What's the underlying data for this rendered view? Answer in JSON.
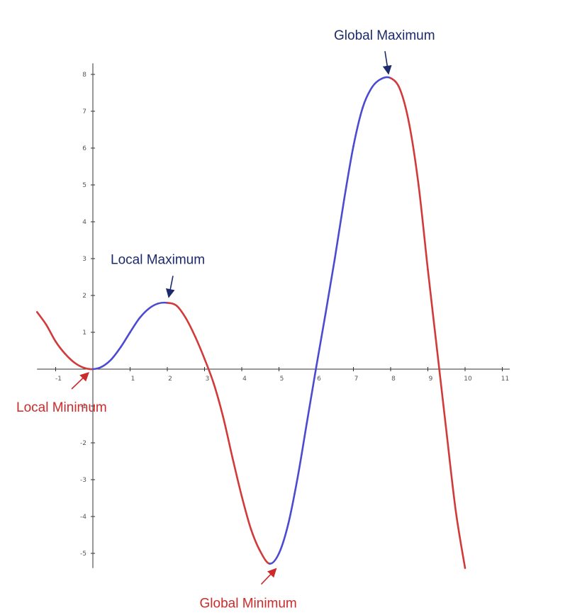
{
  "chart_data": {
    "type": "line",
    "title": "",
    "xlabel": "",
    "ylabel": "",
    "xlim": [
      -1.5,
      11.2
    ],
    "ylim": [
      -5.4,
      8.3
    ],
    "x_ticks": [
      -1,
      1,
      2,
      3,
      4,
      5,
      6,
      7,
      8,
      9,
      10,
      11
    ],
    "x_tick_labels": [
      "-1",
      "1",
      "2",
      "3",
      "4",
      "5",
      "6",
      "7",
      "8",
      "9",
      "10",
      "11"
    ],
    "y_ticks": [
      8,
      7,
      6,
      5,
      4,
      3,
      2,
      1,
      -1,
      -2,
      -3,
      -4,
      -5
    ],
    "y_tick_labels": [
      "8",
      "7",
      "6",
      "5",
      "4",
      "3",
      "2",
      "1",
      "-1",
      "-2",
      "-3",
      "-4",
      "-5"
    ],
    "grid": false,
    "colors": {
      "increasing": "#4b4bd2",
      "decreasing": "#d23a3a",
      "axis": "#333333"
    },
    "series": [
      {
        "x": [
          -1.5,
          -1.25,
          -1,
          -0.75,
          -0.5,
          -0.25,
          0,
          0.25,
          0.5,
          0.75,
          1,
          1.25,
          1.5,
          1.75,
          2,
          2.25,
          2.5,
          2.75,
          3,
          3.25,
          3.5,
          3.75,
          4,
          4.25,
          4.5,
          4.75,
          5,
          5.25,
          5.5,
          5.75,
          6,
          6.25,
          6.5,
          6.75,
          7,
          7.25,
          7.5,
          7.75,
          8,
          8.25,
          8.5,
          8.75,
          9,
          9.25,
          9.5,
          9.75,
          10
        ],
        "y": [
          1.55,
          1.2,
          0.75,
          0.42,
          0.18,
          0.04,
          0,
          0.07,
          0.27,
          0.6,
          1.0,
          1.38,
          1.64,
          1.78,
          1.8,
          1.72,
          1.38,
          0.88,
          0.28,
          -0.4,
          -1.3,
          -2.4,
          -3.45,
          -4.35,
          -4.95,
          -5.28,
          -5.0,
          -4.2,
          -2.95,
          -1.45,
          0.05,
          1.5,
          3.0,
          4.6,
          6.05,
          7.1,
          7.65,
          7.88,
          7.9,
          7.6,
          6.65,
          5.0,
          2.7,
          0.5,
          -1.7,
          -3.85,
          -5.4
        ]
      }
    ],
    "annotations": [
      {
        "text": "Global Maximum",
        "x": 8,
        "y": 7.9,
        "color": "#1c2a6b"
      },
      {
        "text": "Local Maximum",
        "x": 2,
        "y": 1.8,
        "color": "#1c2a6b"
      },
      {
        "text": "Local Minimum",
        "x": 0,
        "y": 0,
        "color": "#cc2b2b"
      },
      {
        "text": "Global Minimum",
        "x": 5,
        "y": -5.28,
        "color": "#cc2b2b"
      }
    ]
  }
}
